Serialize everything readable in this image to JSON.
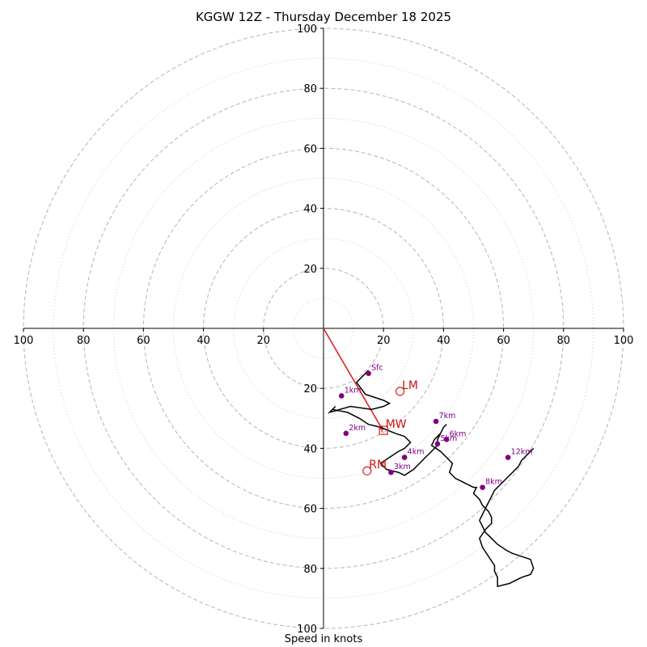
{
  "chart_data": {
    "type": "line",
    "title": "KGGW 12Z - Thursday December 18 2025",
    "xlabel": "Speed in knots",
    "ylabel": "",
    "xlim": [
      -100,
      100
    ],
    "ylim": [
      -100,
      100
    ],
    "x_ticks": [
      "100",
      "80",
      "60",
      "40",
      "20",
      "20",
      "40",
      "60",
      "80",
      "100"
    ],
    "y_ticks": [
      "100",
      "80",
      "60",
      "40",
      "20",
      "20",
      "40",
      "60",
      "80",
      "100"
    ],
    "x_tick_values": [
      -100,
      -80,
      -60,
      -40,
      -20,
      20,
      40,
      60,
      80,
      100
    ],
    "y_tick_values": [
      100,
      80,
      60,
      40,
      20,
      -20,
      -40,
      -60,
      -80,
      -100
    ],
    "rings_dashed": [
      20,
      40,
      60,
      80,
      100
    ],
    "rings_dotted": [
      10,
      30,
      50,
      70,
      90
    ],
    "colors": {
      "hodograph": "#000000",
      "height_marker": "#800080",
      "mean_wind": "#dd2222",
      "ring": "#bbbbbb"
    },
    "hodograph": {
      "u": [
        15,
        11,
        14,
        20,
        22,
        20,
        16,
        9,
        2,
        4,
        3,
        8,
        12,
        15,
        19,
        24,
        27,
        29,
        27,
        25,
        22,
        19,
        21,
        25,
        27,
        30,
        32,
        34,
        36,
        37,
        38,
        38,
        38,
        39,
        40,
        41,
        40,
        39,
        37,
        36,
        39,
        41,
        43,
        42,
        44,
        46,
        48,
        50,
        51,
        50,
        52,
        53,
        55,
        56,
        56,
        54,
        52,
        53,
        55,
        57,
        57,
        58,
        58,
        62,
        66,
        69,
        70,
        69,
        63,
        61,
        58,
        56,
        54,
        53,
        52,
        53,
        54,
        55,
        56,
        57,
        59,
        61,
        63,
        65,
        66,
        67,
        68,
        69,
        70
      ],
      "v": [
        -14,
        -18,
        -22,
        -24,
        -25,
        -26,
        -27,
        -26,
        -28,
        -26,
        -27,
        -28,
        -30,
        -32,
        -33,
        -35,
        -36,
        -38,
        -40,
        -41,
        -43,
        -45,
        -47,
        -48,
        -49,
        -47,
        -45,
        -43,
        -41,
        -40,
        -39,
        -38,
        -37,
        -35,
        -33,
        -32,
        -33,
        -35,
        -37,
        -39,
        -41,
        -43,
        -45,
        -48,
        -50,
        -51,
        -52,
        -53,
        -53,
        -55,
        -57,
        -59,
        -61,
        -63,
        -65,
        -67,
        -70,
        -73,
        -76,
        -79,
        -81,
        -83,
        -86,
        -85,
        -83,
        -82,
        -80,
        -77,
        -75,
        -74,
        -72,
        -70,
        -68,
        -66,
        -64,
        -62,
        -60,
        -58,
        -56,
        -54,
        -52,
        -50,
        -48,
        -46,
        -44,
        -43,
        -42,
        -41,
        -40
      ]
    },
    "height_markers": [
      {
        "label": "Sfc",
        "u": 15,
        "v": -15
      },
      {
        "label": "1km",
        "u": 6,
        "v": -22.5
      },
      {
        "label": "2km",
        "u": 7.5,
        "v": -35
      },
      {
        "label": "3km",
        "u": 22.5,
        "v": -48
      },
      {
        "label": "4km",
        "u": 27,
        "v": -43
      },
      {
        "label": "5km",
        "u": 38,
        "v": -38.5
      },
      {
        "label": "6km",
        "u": 41,
        "v": -37
      },
      {
        "label": "7km",
        "u": 37.5,
        "v": -31
      },
      {
        "label": "8km",
        "u": 53,
        "v": -53
      },
      {
        "label": "12km",
        "u": 61.5,
        "v": -43
      }
    ],
    "mean_wind_vector": {
      "u": 19.5,
      "v": -33.5
    },
    "storm_motion": [
      {
        "label": "LM",
        "u": 25.5,
        "v": -21,
        "marker": "circle"
      },
      {
        "label": "MW",
        "u": 20,
        "v": -34,
        "marker": "square"
      },
      {
        "label": "RM",
        "u": 14.5,
        "v": -47.5,
        "marker": "circle"
      }
    ]
  }
}
